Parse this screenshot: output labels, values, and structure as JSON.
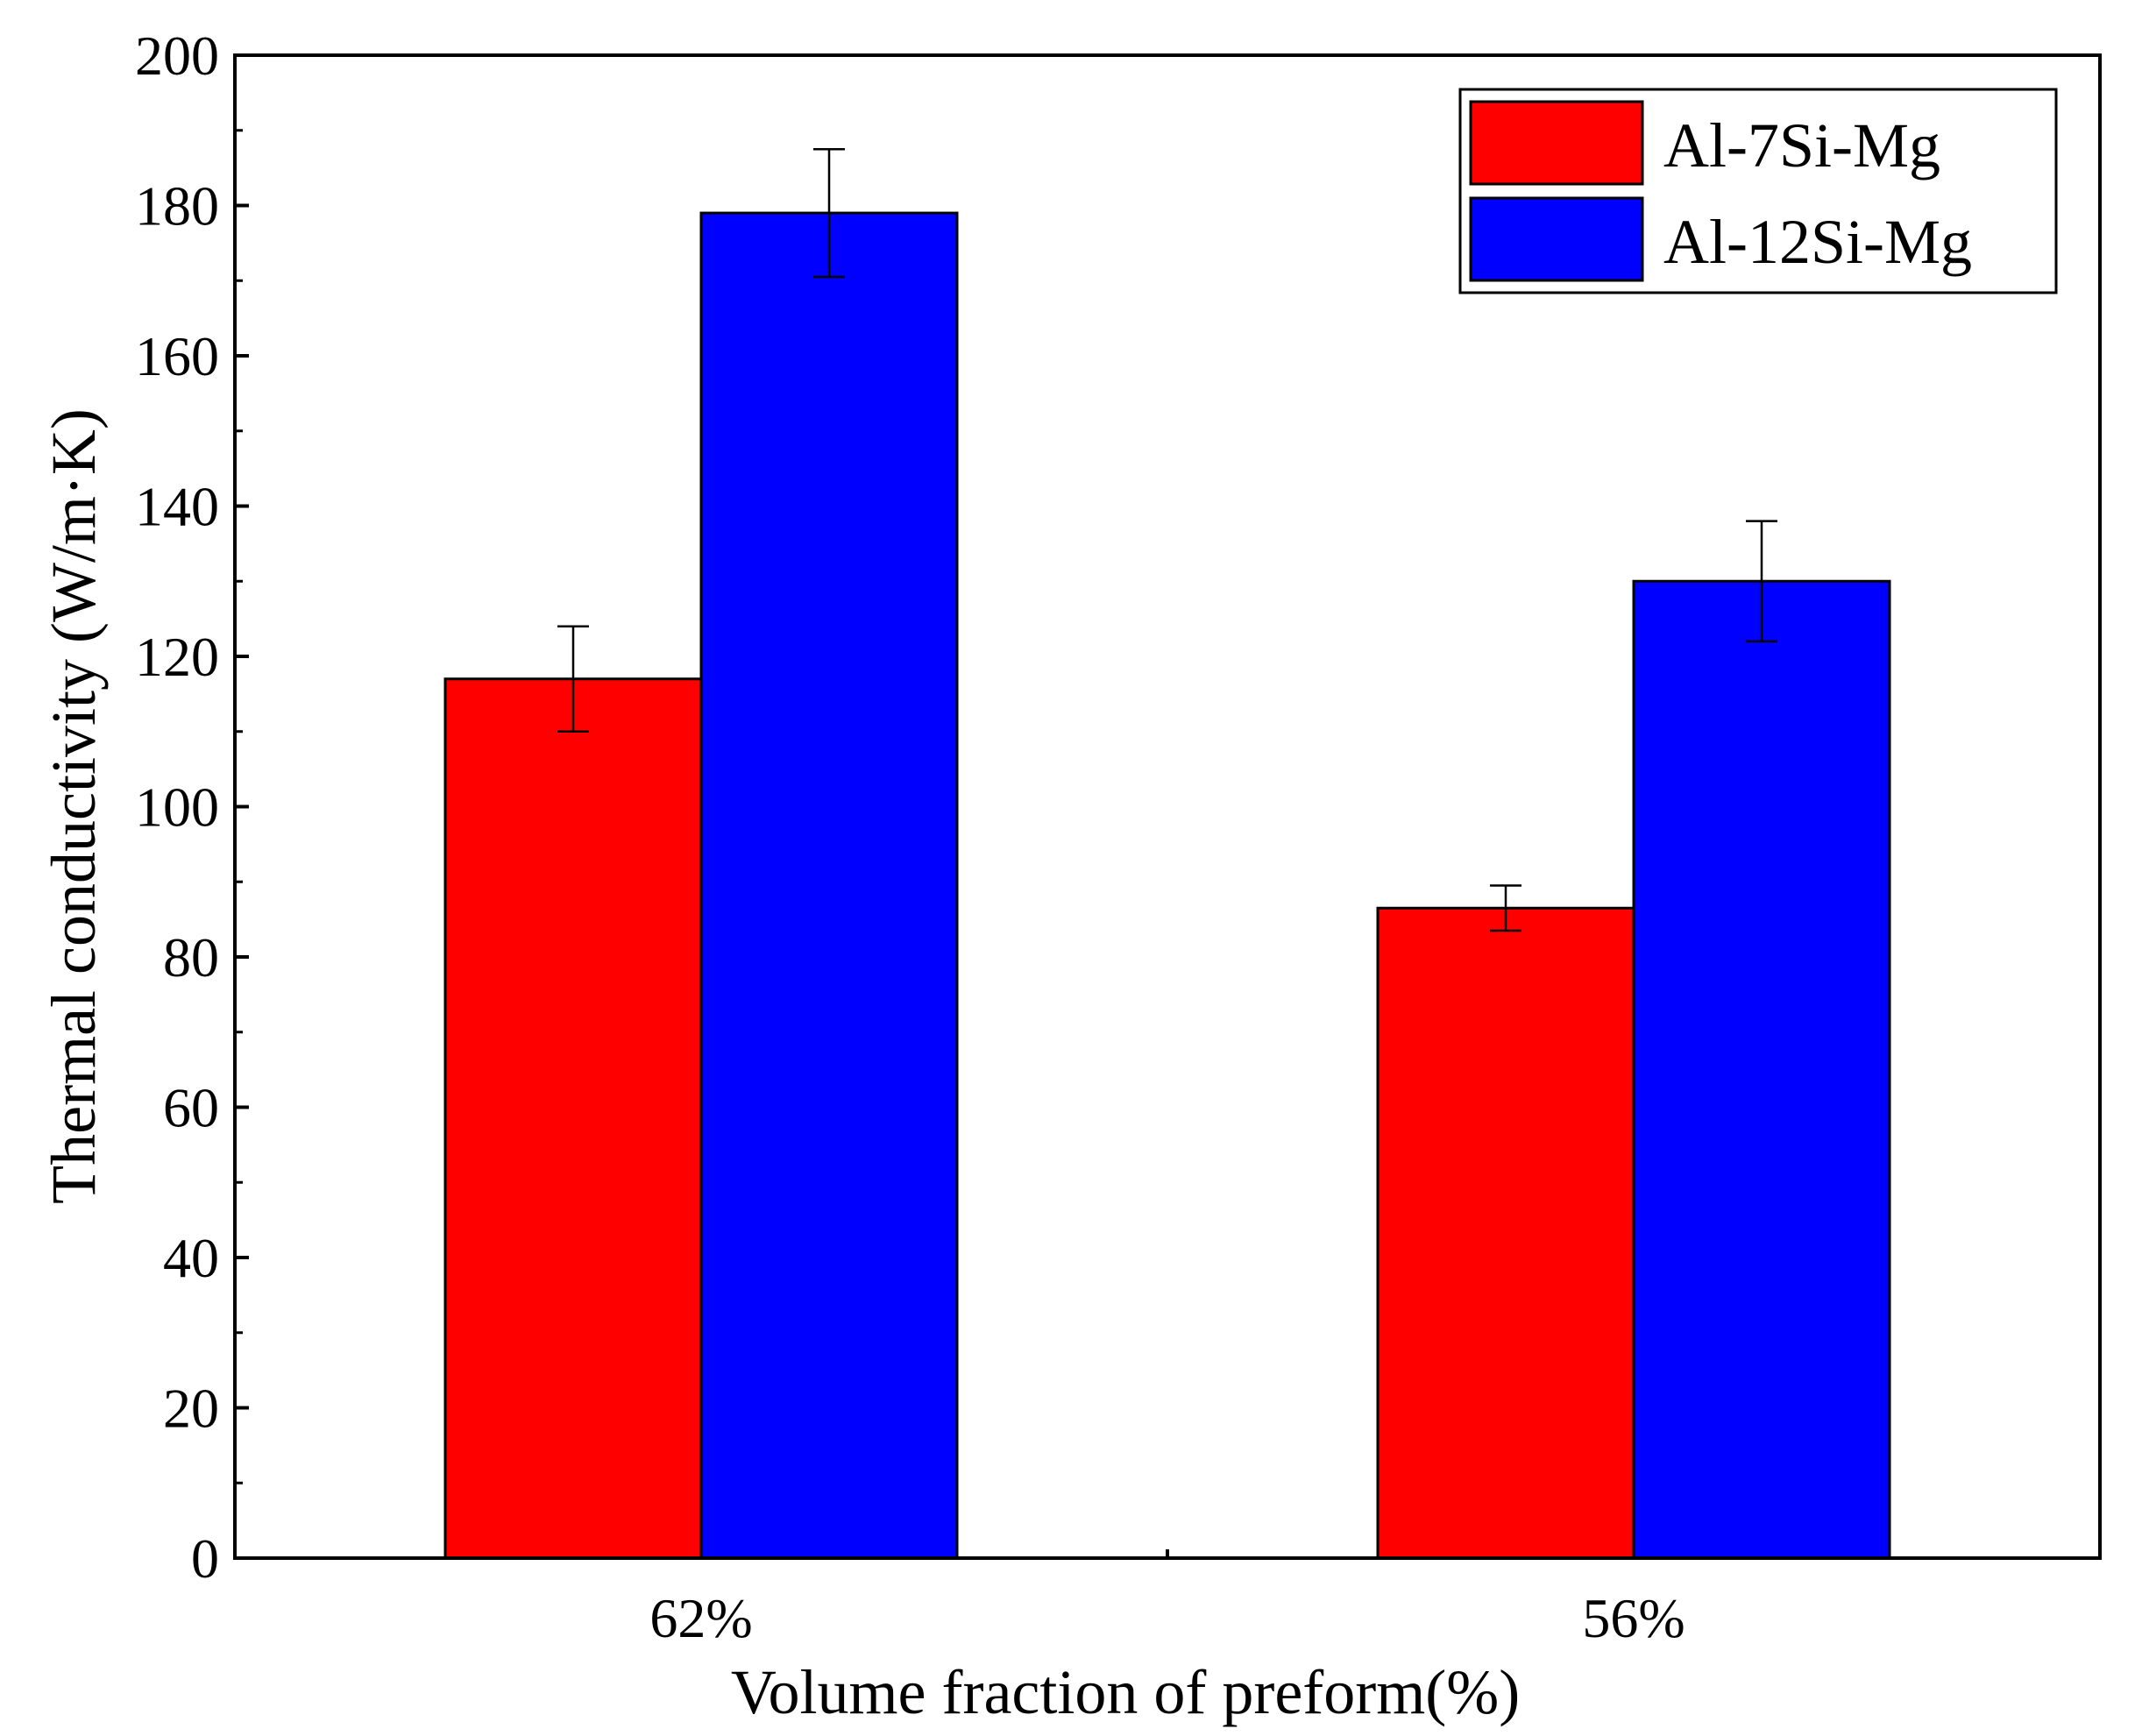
{
  "chart_data": {
    "type": "bar",
    "title": "",
    "xlabel": "Volume fraction of preform(%)",
    "ylabel": "Thermal conductivity (W/m·K)",
    "ylim": [
      0,
      200
    ],
    "yticks": [
      "0",
      "20",
      "40",
      "60",
      "80",
      "100",
      "120",
      "140",
      "160",
      "180",
      "200"
    ],
    "ytick_values": [
      0,
      20,
      40,
      60,
      80,
      100,
      120,
      140,
      160,
      180,
      200
    ],
    "categories": [
      "62%",
      "56%"
    ],
    "series": [
      {
        "name": "Al-7Si-Mg",
        "color": "#ff0000",
        "values": [
          117,
          86.5
        ],
        "errors": [
          7,
          3
        ]
      },
      {
        "name": "Al-12Si-Mg",
        "color": "#0000ff",
        "values": [
          179,
          130
        ],
        "errors": [
          8.5,
          8
        ]
      }
    ],
    "grid": false,
    "legend_position": "top-right"
  }
}
